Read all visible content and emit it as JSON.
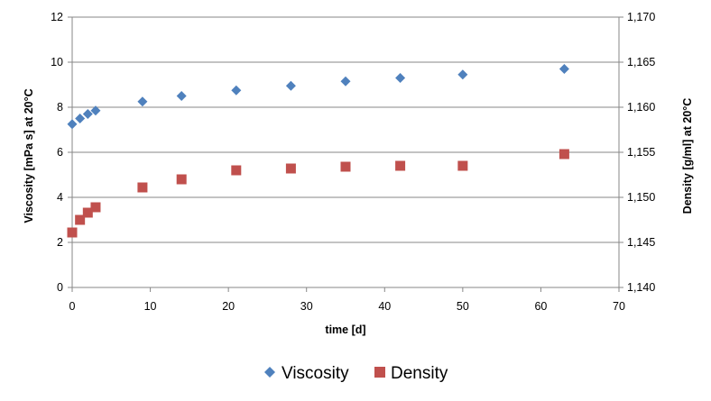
{
  "chart_data": {
    "type": "scatter",
    "xlabel": "time [d]",
    "ylabel": "Viscosity [mPa s] at 20°C",
    "y2label": "Density [g/ml] at 20°C",
    "xlim": [
      0,
      70
    ],
    "ylim": [
      0,
      12
    ],
    "y2lim": [
      1.14,
      1.17
    ],
    "x_ticks": [
      "0",
      "10",
      "20",
      "30",
      "40",
      "50",
      "60",
      "70"
    ],
    "y_ticks": [
      "0",
      "2",
      "4",
      "6",
      "8",
      "10",
      "12"
    ],
    "y2_ticks": [
      "1,140",
      "1,145",
      "1,150",
      "1,155",
      "1,160",
      "1,165",
      "1,170"
    ],
    "grid": "horizontal",
    "legend_position": "bottom",
    "series": [
      {
        "name": "Viscosity",
        "axis": "left",
        "marker": "diamond",
        "color": "#4F81BD",
        "x": [
          0,
          1,
          2,
          3,
          9,
          14,
          21,
          28,
          35,
          42,
          50,
          63
        ],
        "y": [
          7.25,
          7.5,
          7.7,
          7.85,
          8.25,
          8.5,
          8.75,
          8.95,
          9.15,
          9.3,
          9.45,
          9.7
        ]
      },
      {
        "name": "Density",
        "axis": "right",
        "marker": "square",
        "color": "#C0504D",
        "x": [
          0,
          1,
          2,
          3,
          9,
          14,
          21,
          28,
          35,
          42,
          50,
          63
        ],
        "y": [
          1.1461,
          1.1475,
          1.1483,
          1.1489,
          1.1511,
          1.152,
          1.153,
          1.1532,
          1.1534,
          1.1535,
          1.1535,
          1.1548
        ]
      }
    ]
  }
}
